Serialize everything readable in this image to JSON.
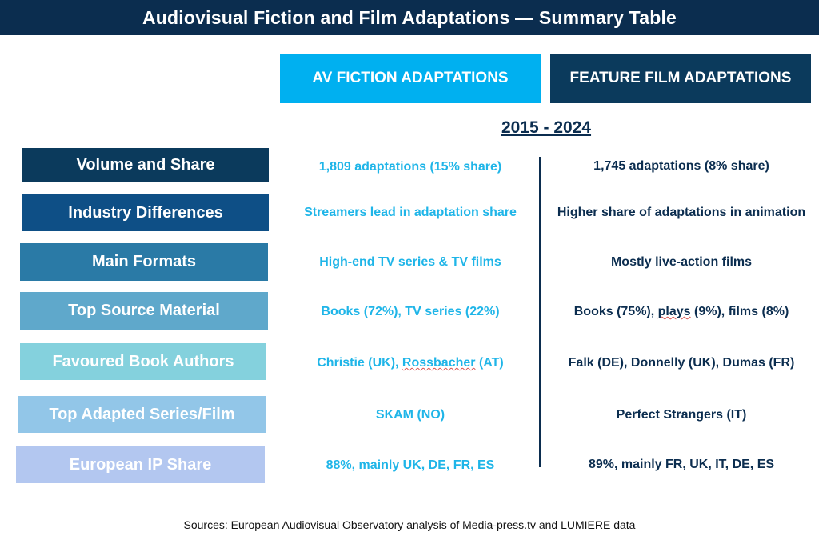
{
  "title": "Audiovisual Fiction and Film Adaptations — Summary Table",
  "columns": {
    "av": {
      "label": "AV FICTION ADAPTATIONS",
      "color": "#00b0f0"
    },
    "film": {
      "label": "FEATURE FILM ADAPTATIONS",
      "color": "#0b3a5c"
    }
  },
  "period": "2015 - 2024",
  "rows": [
    {
      "label": "Volume and Share",
      "color": "#0b3a5c",
      "av": "1,809 adaptations (15% share)",
      "film": "1,745 adaptations (8% share)"
    },
    {
      "label": "Industry Differences",
      "color": "#0e4f86",
      "av": "Streamers lead in adaptation share",
      "film": "Higher share of adaptations in animation"
    },
    {
      "label": "Main Formats",
      "color": "#2a7aa6",
      "av": "High-end TV series & TV films",
      "film": "Mostly live-action films"
    },
    {
      "label": "Top Source Material",
      "color": "#5fa8cb",
      "av": "Books (72%), TV series (22%)",
      "film_pre": "Books (75%), ",
      "film_mark": "plays",
      "film_post": " (9%), films (8%)"
    },
    {
      "label": "Favoured Book Authors",
      "color": "#84d1dd",
      "av_pre": "Christie (UK), ",
      "av_mark": "Rossbacher",
      "av_post": " (AT)",
      "film": "Falk (DE), Donnelly (UK), Dumas (FR)"
    },
    {
      "label": "Top Adapted Series/Film",
      "color": "#92c6e8",
      "av": "SKAM (NO)",
      "film": "Perfect Strangers (IT)"
    },
    {
      "label": "European IP Share",
      "color": "#b3c7f0",
      "av": "88%, mainly UK, DE, FR, ES",
      "film": "89%, mainly FR, UK, IT, DE, ES"
    }
  ],
  "sources": "Sources: European Audiovisual Observatory analysis of Media-press.tv and LUMIERE data"
}
